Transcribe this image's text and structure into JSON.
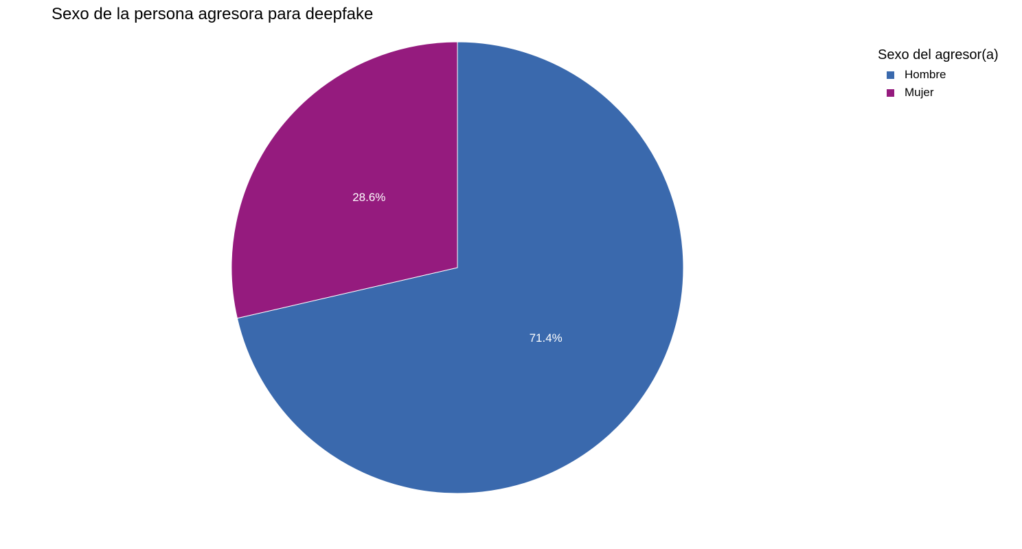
{
  "chart_data": {
    "type": "pie",
    "title": "Sexo de la persona agresora para deepfake",
    "legend_title": "Sexo del agresor(a)",
    "legend_position": "top-right",
    "categories": [
      "Hombre",
      "Mujer"
    ],
    "values": [
      71.4,
      28.6
    ],
    "labels": [
      "71.4%",
      "28.6%"
    ],
    "colors": [
      "#3A69AD",
      "#951B7E"
    ]
  }
}
